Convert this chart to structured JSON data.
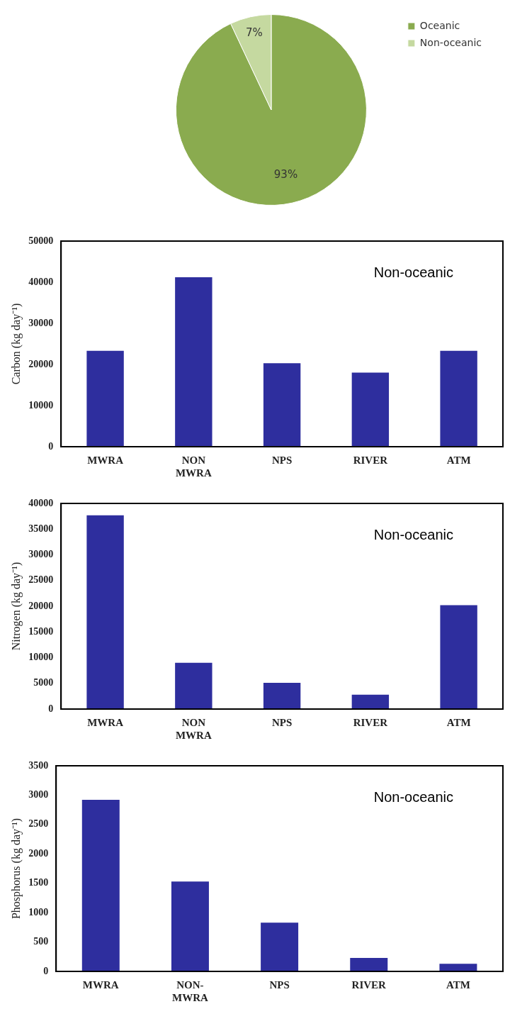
{
  "chart_data": [
    {
      "type": "pie",
      "categories": [
        "Oceanic",
        "Non-oceanic"
      ],
      "values": [
        93,
        7
      ],
      "colors": [
        "#8aab4f",
        "#c5d9a0"
      ],
      "value_labels": [
        "93%",
        "7%"
      ],
      "legend": "top right"
    },
    {
      "type": "bar",
      "categories": [
        "MWRA",
        "NON MWRA",
        "NPS",
        "RIVER",
        "ATM"
      ],
      "values": [
        23300,
        41200,
        20300,
        18000,
        23300
      ],
      "color": "#2e2e9e",
      "ylabel": "Carbon (kg day⁻¹)",
      "ylim": [
        0,
        50000
      ],
      "yticks": [
        0,
        10000,
        20000,
        30000,
        40000,
        50000
      ],
      "annotations": [
        "Non-oceanic"
      ]
    },
    {
      "type": "bar",
      "categories": [
        "MWRA",
        "NON MWRA",
        "NPS",
        "RIVER",
        "ATM"
      ],
      "values": [
        37700,
        9000,
        5100,
        2800,
        20200
      ],
      "color": "#2e2e9e",
      "ylabel": "Nitrogen (kg day⁻¹)",
      "ylim": [
        0,
        40000
      ],
      "yticks": [
        0,
        5000,
        10000,
        15000,
        20000,
        25000,
        30000,
        35000,
        40000
      ],
      "annotations": [
        "Non-oceanic"
      ]
    },
    {
      "type": "bar",
      "categories": [
        "MWRA",
        "NON-MWRA",
        "NPS",
        "RIVER",
        "ATM"
      ],
      "values": [
        2920,
        1530,
        830,
        230,
        130
      ],
      "color": "#2e2e9e",
      "ylabel": "Phosphorus (kg day⁻¹)",
      "ylim": [
        0,
        3500
      ],
      "yticks": [
        0,
        500,
        1000,
        1500,
        2000,
        2500,
        3000,
        3500
      ],
      "annotations": [
        "Non-oceanic"
      ]
    }
  ]
}
